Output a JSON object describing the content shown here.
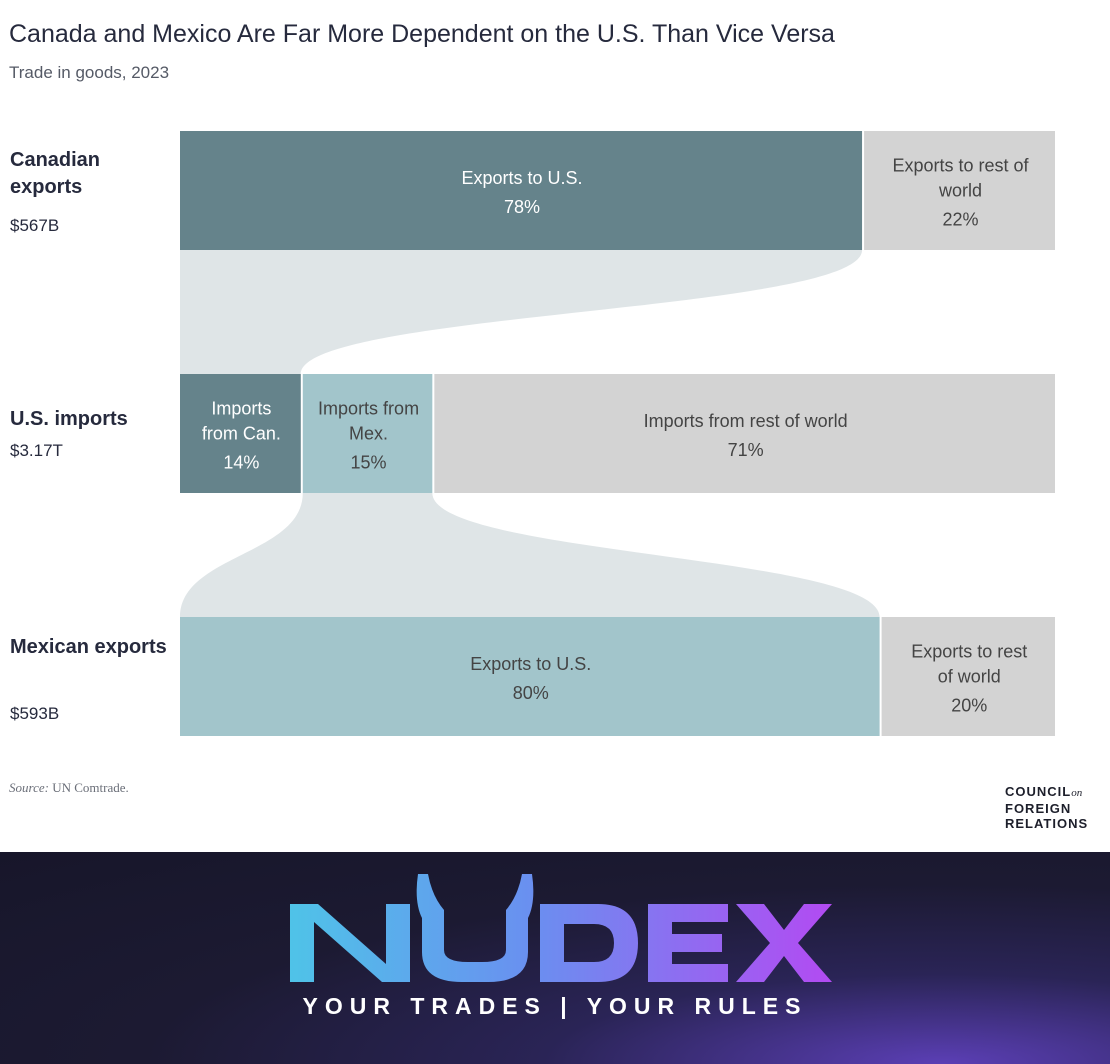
{
  "header": {
    "title": "Canada and Mexico Are Far More Dependent on the U.S. Than Vice Versa",
    "subtitle": "Trade in goods, 2023"
  },
  "chart_data": {
    "type": "sankey",
    "title": "Canada and Mexico Are Far More Dependent on the U.S. Than Vice Versa",
    "subtitle": "Trade in goods, 2023",
    "rows": [
      {
        "id": "canada",
        "label": "Canadian exports",
        "total": "$567B",
        "segments": [
          {
            "label": "Exports to U.S.",
            "value": 78,
            "display": "78%",
            "color": "#65838b",
            "text_color": "#ffffff"
          },
          {
            "label": "Exports to rest of world",
            "value": 22,
            "display": "22%",
            "color": "#d3d3d3",
            "text_color": "#444444"
          }
        ]
      },
      {
        "id": "us",
        "label": "U.S. imports",
        "total": "$3.17T",
        "segments": [
          {
            "label": "Imports from Can.",
            "value": 14,
            "display": "14%",
            "color": "#65838b",
            "text_color": "#ffffff"
          },
          {
            "label": "Imports from Mex.",
            "value": 15,
            "display": "15%",
            "color": "#a2c5cb",
            "text_color": "#444444"
          },
          {
            "label": "Imports from rest of world",
            "value": 71,
            "display": "71%",
            "color": "#d3d3d3",
            "text_color": "#444444"
          }
        ]
      },
      {
        "id": "mexico",
        "label": "Mexican exports",
        "total": "$593B",
        "segments": [
          {
            "label": "Exports to U.S.",
            "value": 80,
            "display": "80%",
            "color": "#a2c5cb",
            "text_color": "#444444"
          },
          {
            "label": "Exports to rest of world",
            "value": 20,
            "display": "20%",
            "color": "#d3d3d3",
            "text_color": "#444444"
          }
        ]
      }
    ],
    "flows": [
      {
        "from": "Canadian exports to U.S.",
        "to": "U.S. imports from Can."
      },
      {
        "from": "Mexican exports to U.S.",
        "to": "U.S. imports from Mex."
      }
    ],
    "flow_color": "#dfe5e7"
  },
  "footer": {
    "source_label": "Source:",
    "source_text": "UN Comtrade.",
    "cfr_line1": "COUNCIL",
    "cfr_on": "on",
    "cfr_line2": "FOREIGN",
    "cfr_line3": "RELATIONS"
  },
  "banner": {
    "logo_text": "NUDEX",
    "tagline": "YOUR TRADES | YOUR RULES"
  }
}
